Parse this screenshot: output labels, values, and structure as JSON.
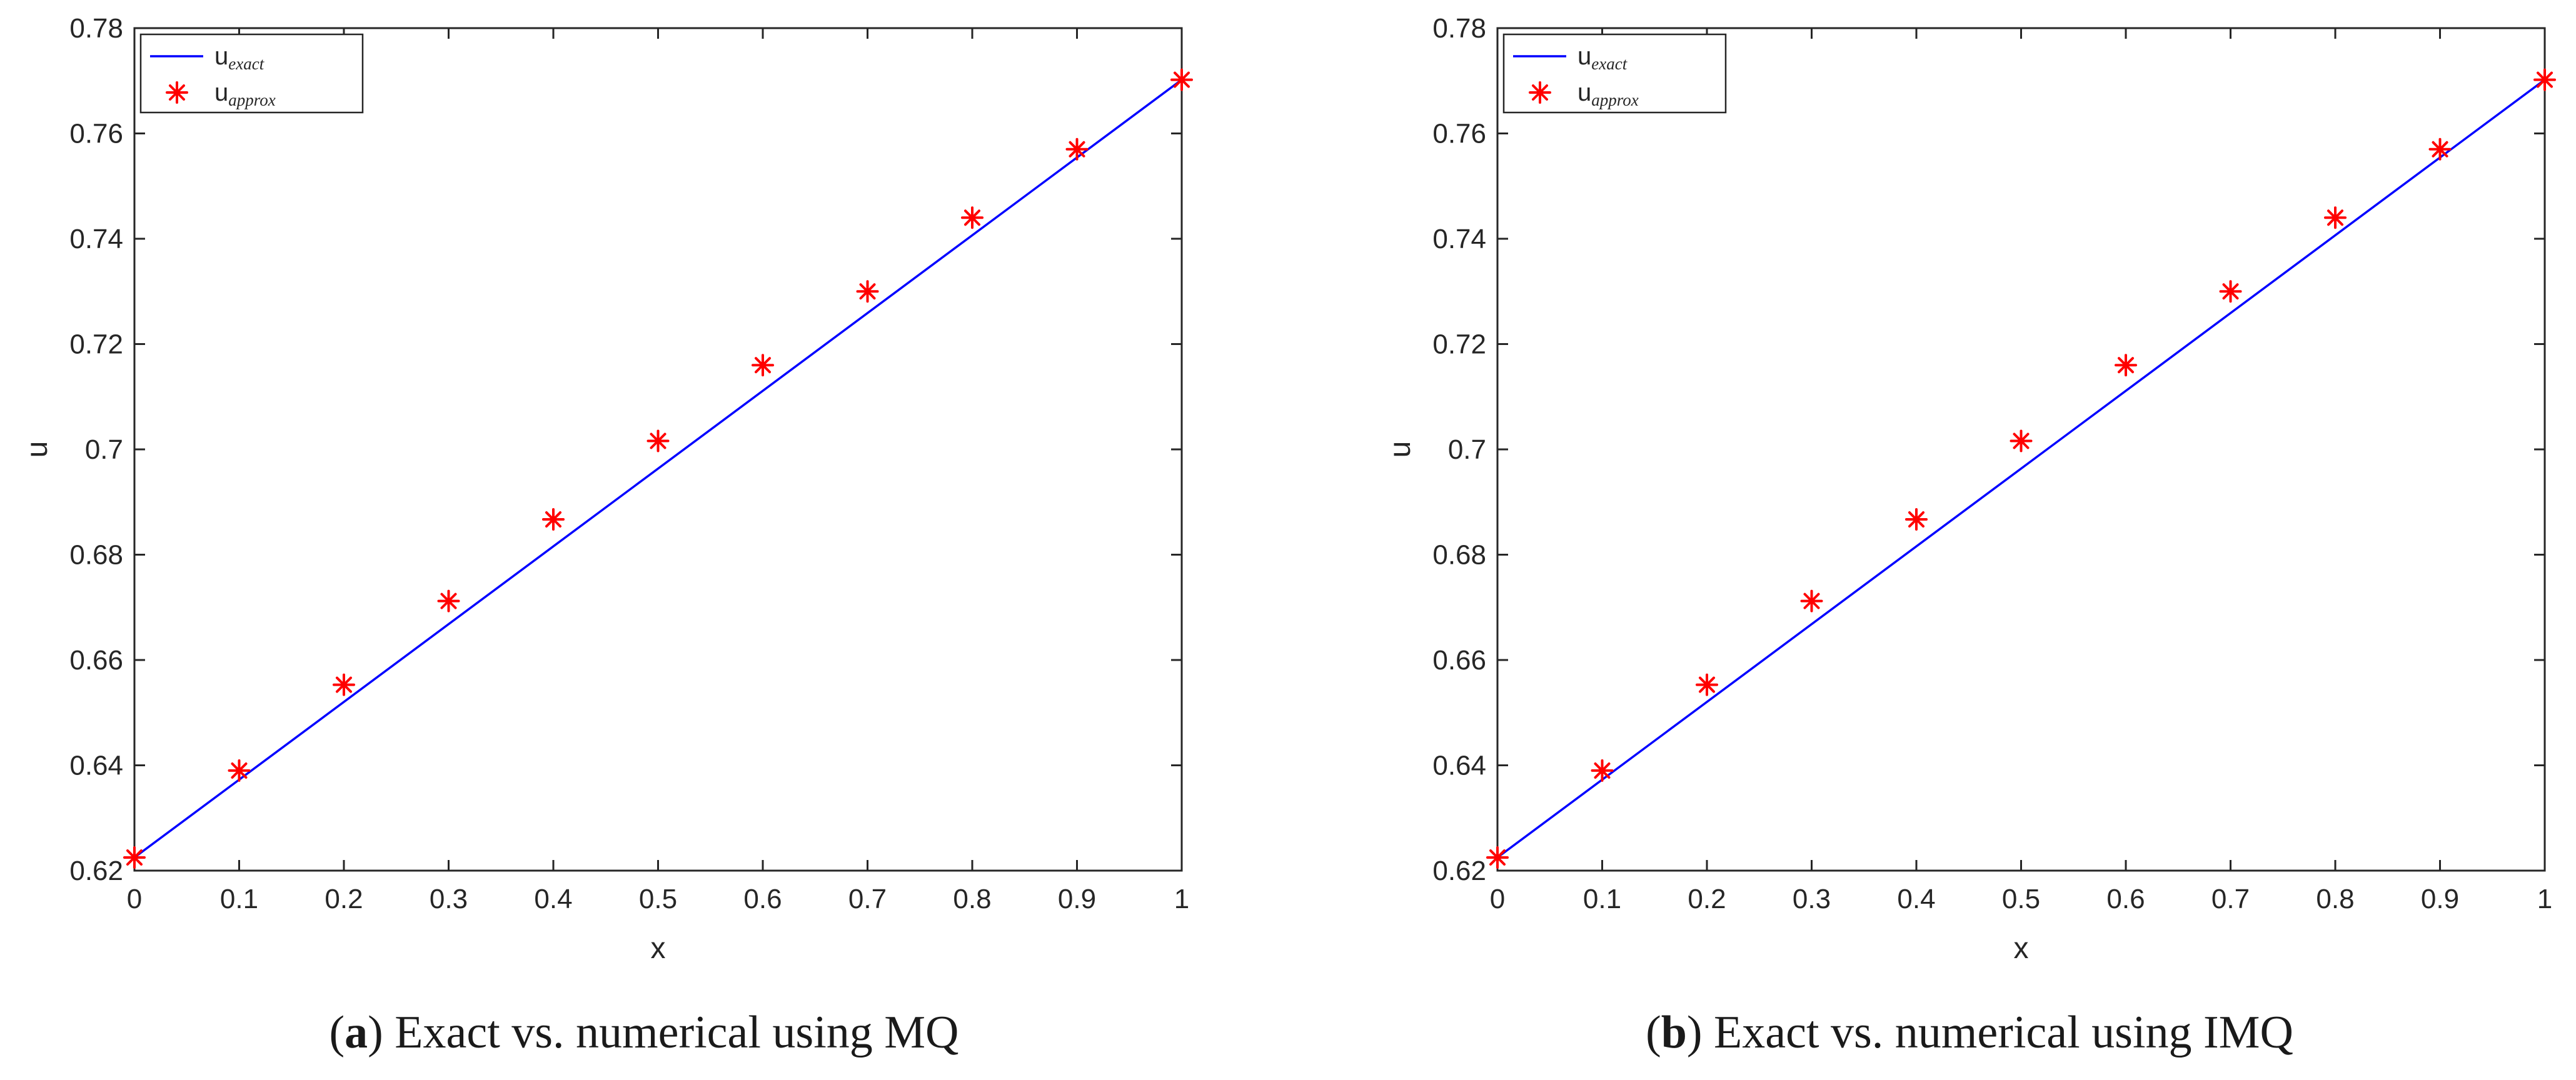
{
  "chart_data": [
    {
      "type": "line",
      "panel_letter": "a",
      "caption_text": ") Exact vs. numerical using MQ",
      "xlabel": "x",
      "ylabel": "u",
      "xlim": [
        0,
        1
      ],
      "ylim": [
        0.62,
        0.78
      ],
      "xticks": [
        0,
        0.1,
        0.2,
        0.3,
        0.4,
        0.5,
        0.6,
        0.7,
        0.8,
        0.9,
        1
      ],
      "xtick_labels": [
        "0",
        "0.1",
        "0.2",
        "0.3",
        "0.4",
        "0.5",
        "0.6",
        "0.7",
        "0.8",
        "0.9",
        "1"
      ],
      "yticks": [
        0.62,
        0.64,
        0.66,
        0.68,
        0.7,
        0.72,
        0.74,
        0.76,
        0.78
      ],
      "ytick_labels": [
        "0.62",
        "0.64",
        "0.66",
        "0.68",
        "0.7",
        "0.72",
        "0.74",
        "0.76",
        "0.78"
      ],
      "grid": false,
      "legend_placement": "top-left",
      "series": [
        {
          "name": "u_exact",
          "legend_base": "u",
          "legend_sub": "exact",
          "style": "line",
          "color": "#0000ff",
          "x": [
            0,
            1
          ],
          "y": [
            0.6225,
            0.7702
          ]
        },
        {
          "name": "u_approx",
          "legend_base": "u",
          "legend_sub": "approx",
          "style": "markers",
          "marker": "asterisk",
          "color": "#ff0000",
          "x": [
            0,
            0.1,
            0.2,
            0.3,
            0.4,
            0.5,
            0.6,
            0.7,
            0.8,
            0.9,
            1
          ],
          "y": [
            0.6225,
            0.639,
            0.6553,
            0.6712,
            0.6867,
            0.7016,
            0.716,
            0.73,
            0.744,
            0.757,
            0.7702
          ]
        }
      ]
    },
    {
      "type": "line",
      "panel_letter": "b",
      "caption_text": ") Exact vs. numerical using IMQ",
      "xlabel": "x",
      "ylabel": "u",
      "xlim": [
        0,
        1
      ],
      "ylim": [
        0.62,
        0.78
      ],
      "xticks": [
        0,
        0.1,
        0.2,
        0.3,
        0.4,
        0.5,
        0.6,
        0.7,
        0.8,
        0.9,
        1
      ],
      "xtick_labels": [
        "0",
        "0.1",
        "0.2",
        "0.3",
        "0.4",
        "0.5",
        "0.6",
        "0.7",
        "0.8",
        "0.9",
        "1"
      ],
      "yticks": [
        0.62,
        0.64,
        0.66,
        0.68,
        0.7,
        0.72,
        0.74,
        0.76,
        0.78
      ],
      "ytick_labels": [
        "0.62",
        "0.64",
        "0.66",
        "0.68",
        "0.7",
        "0.72",
        "0.74",
        "0.76",
        "0.78"
      ],
      "grid": false,
      "legend_placement": "top-left",
      "series": [
        {
          "name": "u_exact",
          "legend_base": "u",
          "legend_sub": "exact",
          "style": "line",
          "color": "#0000ff",
          "x": [
            0,
            1
          ],
          "y": [
            0.6225,
            0.7702
          ]
        },
        {
          "name": "u_approx",
          "legend_base": "u",
          "legend_sub": "approx",
          "style": "markers",
          "marker": "asterisk",
          "color": "#ff0000",
          "x": [
            0,
            0.1,
            0.2,
            0.3,
            0.4,
            0.5,
            0.6,
            0.7,
            0.8,
            0.9,
            1
          ],
          "y": [
            0.6225,
            0.639,
            0.6553,
            0.6712,
            0.6867,
            0.7016,
            0.716,
            0.73,
            0.744,
            0.757,
            0.7702
          ]
        }
      ]
    }
  ]
}
